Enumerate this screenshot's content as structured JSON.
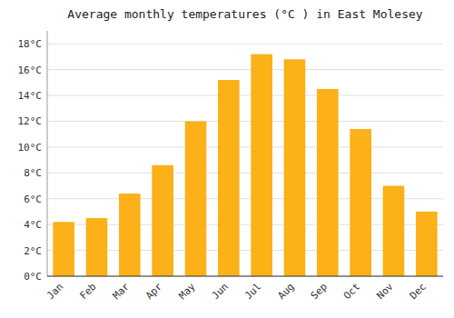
{
  "chart_data": {
    "type": "bar",
    "title": "Average monthly temperatures (°C ) in East Molesey",
    "categories": [
      "Jan",
      "Feb",
      "Mar",
      "Apr",
      "May",
      "Jun",
      "Jul",
      "Aug",
      "Sep",
      "Oct",
      "Nov",
      "Dec"
    ],
    "values": [
      4.2,
      4.5,
      6.4,
      8.6,
      12.0,
      15.2,
      17.2,
      16.8,
      14.5,
      11.4,
      7.0,
      5.0
    ],
    "color": "#FBB117",
    "ylim": [
      0,
      19
    ],
    "yticks": [
      {
        "value": 0,
        "label": "0°C"
      },
      {
        "value": 2,
        "label": "2°C"
      },
      {
        "value": 4,
        "label": "4°C"
      },
      {
        "value": 6,
        "label": "6°C"
      },
      {
        "value": 8,
        "label": "8°C"
      },
      {
        "value": 10,
        "label": "10°C"
      },
      {
        "value": 12,
        "label": "12°C"
      },
      {
        "value": 14,
        "label": "14°C"
      },
      {
        "value": 16,
        "label": "16°C"
      },
      {
        "value": 18,
        "label": "18°C"
      }
    ],
    "grid": true
  }
}
